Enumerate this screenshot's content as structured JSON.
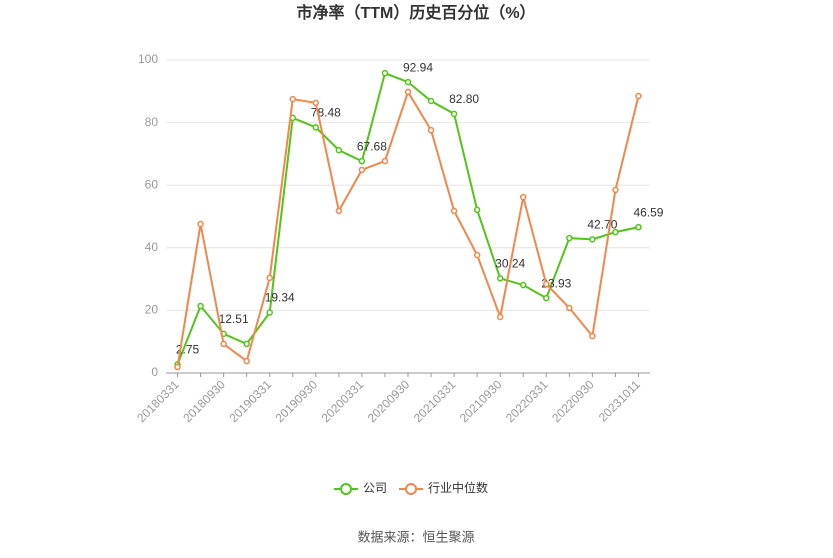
{
  "chart_data": {
    "type": "line",
    "title": "市净率（TTM）历史百分位（%）",
    "source": "数据来源：恒生聚源",
    "categories": [
      "20180331",
      null,
      "20180930",
      null,
      "20190331",
      null,
      "20190930",
      null,
      "20200331",
      null,
      "20200930",
      null,
      "20210331",
      null,
      "20210930",
      null,
      "20220331",
      null,
      "20220930",
      null,
      "20231011"
    ],
    "series": [
      {
        "name": "公司",
        "color": "#52c41a",
        "values": [
          2.75,
          21.4,
          12.51,
          9.3,
          19.34,
          81.5,
          78.48,
          71.2,
          67.68,
          95.8,
          92.94,
          86.9,
          82.8,
          52.1,
          30.24,
          28.1,
          23.93,
          43.1,
          42.7,
          45.0,
          46.59
        ],
        "value_labels": [
          "2.75",
          null,
          "12.51",
          null,
          "19.34",
          null,
          "78.48",
          null,
          "67.68",
          null,
          "92.94",
          null,
          "82.80",
          null,
          "30.24",
          null,
          "23.93",
          null,
          "42.70",
          null,
          "46.59"
        ]
      },
      {
        "name": "行业中位数",
        "color": "#f0874c",
        "values": [
          1.9,
          47.6,
          9.3,
          3.8,
          30.4,
          87.5,
          86.3,
          51.8,
          64.9,
          67.7,
          89.8,
          77.6,
          51.8,
          37.7,
          17.9,
          56.2,
          28.4,
          20.8,
          11.8,
          58.5,
          88.5
        ]
      }
    ],
    "ylim": [
      0,
      100
    ],
    "yticks": [
      0,
      20,
      40,
      60,
      80,
      100
    ],
    "grid": true,
    "legend": "bottom"
  }
}
